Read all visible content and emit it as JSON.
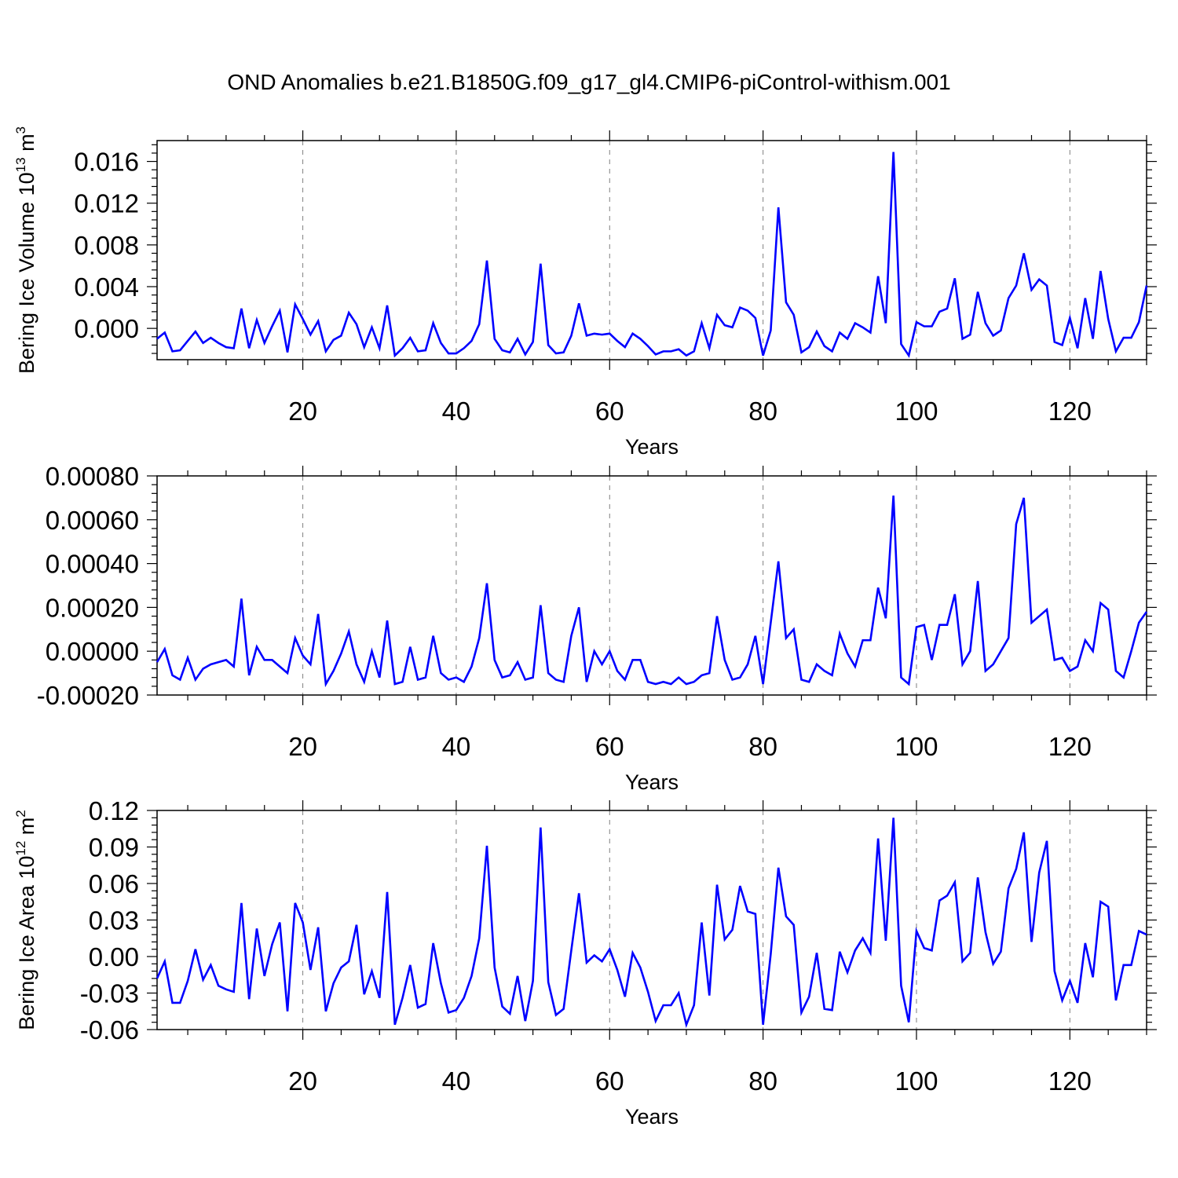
{
  "title": "OND Anomalies b.e21.B1850G.f09_g17_gl4.CMIP6-piControl-withism.001",
  "colors": {
    "line": "#0000ff",
    "axis": "#000000",
    "grid": "#808080"
  },
  "chart_data": [
    {
      "type": "line",
      "title": "",
      "xlabel": "Years",
      "ylabel_parts": [
        "Bering Ice Volume 10",
        "13",
        " m",
        "3"
      ],
      "xlim": [
        1,
        130
      ],
      "ylim": [
        -0.003,
        0.018
      ],
      "xticks": [
        20,
        40,
        60,
        80,
        100,
        120
      ],
      "yticks": [
        0.0,
        0.004,
        0.008,
        0.012,
        0.016
      ],
      "ytick_labels": [
        "0.000",
        "0.004",
        "0.008",
        "0.012",
        "0.016"
      ],
      "x_grid": true,
      "series": [
        {
          "x": [
            1,
            2,
            3,
            4,
            5,
            6,
            7,
            8,
            9,
            10,
            11,
            12,
            13,
            14,
            15,
            16,
            17,
            18,
            19,
            20,
            21,
            22,
            23,
            24,
            25,
            26,
            27,
            28,
            29,
            30,
            31,
            32,
            33,
            34,
            35,
            36,
            37,
            38,
            39,
            40,
            41,
            42,
            43,
            44,
            45,
            46,
            47,
            48,
            49,
            50,
            51,
            52,
            53,
            54,
            55,
            56,
            57,
            58,
            59,
            60,
            61,
            62,
            63,
            64,
            65,
            66,
            67,
            68,
            69,
            70,
            71,
            72,
            73,
            74,
            75,
            76,
            77,
            78,
            79,
            80,
            81,
            82,
            83,
            84,
            85,
            86,
            87,
            88,
            89,
            90,
            91,
            92,
            93,
            94,
            95,
            96,
            97,
            98,
            99,
            100,
            101,
            102,
            103,
            104,
            105,
            106,
            107,
            108,
            109,
            110,
            111,
            112,
            113,
            114,
            115,
            116,
            117,
            118,
            119,
            120,
            121,
            122,
            123,
            124,
            125,
            126,
            127,
            128,
            129,
            130
          ],
          "y": [
            -0.001,
            -0.0004,
            -0.0022,
            -0.0021,
            -0.0012,
            -0.0003,
            -0.0014,
            -0.0009,
            -0.0014,
            -0.0018,
            -0.0019,
            0.0019,
            -0.0019,
            0.0008,
            -0.0014,
            0.0002,
            0.0017,
            -0.0023,
            0.0023,
            0.0009,
            -0.0006,
            0.0007,
            -0.0022,
            -0.0011,
            -0.0007,
            0.0015,
            0.0004,
            -0.0018,
            0.0001,
            -0.0019,
            0.0022,
            -0.0026,
            -0.0019,
            -0.0009,
            -0.0022,
            -0.0021,
            0.0005,
            -0.0014,
            -0.0024,
            -0.0024,
            -0.0019,
            -0.0012,
            0.0004,
            0.0065,
            -0.001,
            -0.0021,
            -0.0023,
            -0.001,
            -0.0025,
            -0.0013,
            0.0062,
            -0.0016,
            -0.0024,
            -0.0023,
            -0.0007,
            0.0024,
            -0.0007,
            -0.0005,
            -0.0006,
            -0.0005,
            -0.0012,
            -0.0018,
            -0.0005,
            -0.001,
            -0.0017,
            -0.0025,
            -0.0022,
            -0.0022,
            -0.002,
            -0.0026,
            -0.0022,
            0.0005,
            -0.0019,
            0.0013,
            0.0003,
            0.0001,
            0.002,
            0.0017,
            0.001,
            -0.0026,
            -0.0002,
            0.0116,
            0.0025,
            0.0013,
            -0.0023,
            -0.0018,
            -0.0003,
            -0.0017,
            -0.0022,
            -0.0004,
            -0.001,
            0.0005,
            0.0001,
            -0.0004,
            0.005,
            0.0005,
            0.0169,
            -0.0015,
            -0.0026,
            0.0006,
            0.0002,
            0.0002,
            0.0016,
            0.0019,
            0.0048,
            -0.001,
            -0.0006,
            0.0035,
            0.0005,
            -0.0007,
            -0.0002,
            0.0029,
            0.0041,
            0.0072,
            0.0037,
            0.0047,
            0.0041,
            -0.0013,
            -0.0016,
            0.001,
            -0.0019,
            0.0029,
            -0.001,
            0.0055,
            0.0009,
            -0.0022,
            -0.0009,
            -0.0009,
            0.0006,
            0.0041
          ]
        }
      ]
    },
    {
      "type": "line",
      "title": "",
      "xlabel": "Years",
      "ylabel_parts": [],
      "xlim": [
        1,
        130
      ],
      "ylim": [
        -0.0002,
        0.0008
      ],
      "xticks": [
        20,
        40,
        60,
        80,
        100,
        120
      ],
      "yticks": [
        -0.0002,
        0.0,
        0.0002,
        0.0004,
        0.0006,
        0.0008
      ],
      "ytick_labels": [
        "-0.00020",
        "0.00000",
        "0.00020",
        "0.00040",
        "0.00060",
        "0.00080"
      ],
      "x_grid": true,
      "series": [
        {
          "x": [
            1,
            2,
            3,
            4,
            5,
            6,
            7,
            8,
            9,
            10,
            11,
            12,
            13,
            14,
            15,
            16,
            17,
            18,
            19,
            20,
            21,
            22,
            23,
            24,
            25,
            26,
            27,
            28,
            29,
            30,
            31,
            32,
            33,
            34,
            35,
            36,
            37,
            38,
            39,
            40,
            41,
            42,
            43,
            44,
            45,
            46,
            47,
            48,
            49,
            50,
            51,
            52,
            53,
            54,
            55,
            56,
            57,
            58,
            59,
            60,
            61,
            62,
            63,
            64,
            65,
            66,
            67,
            68,
            69,
            70,
            71,
            72,
            73,
            74,
            75,
            76,
            77,
            78,
            79,
            80,
            81,
            82,
            83,
            84,
            85,
            86,
            87,
            88,
            89,
            90,
            91,
            92,
            93,
            94,
            95,
            96,
            97,
            98,
            99,
            100,
            101,
            102,
            103,
            104,
            105,
            106,
            107,
            108,
            109,
            110,
            111,
            112,
            113,
            114,
            115,
            116,
            117,
            118,
            119,
            120,
            121,
            122,
            123,
            124,
            125,
            126,
            127,
            128,
            129,
            130
          ],
          "y": [
            -5e-05,
            1e-05,
            -0.00011,
            -0.00013,
            -3e-05,
            -0.00013,
            -8e-05,
            -6e-05,
            -5e-05,
            -4e-05,
            -7e-05,
            0.00024,
            -0.00011,
            2e-05,
            -4e-05,
            -4e-05,
            -7e-05,
            -0.0001,
            6e-05,
            -2e-05,
            -6e-05,
            0.00017,
            -0.00015,
            -9e-05,
            -1e-05,
            9e-05,
            -6e-05,
            -0.00014,
            0.0,
            -0.00012,
            0.00014,
            -0.00015,
            -0.00014,
            2e-05,
            -0.00013,
            -0.00012,
            7e-05,
            -0.0001,
            -0.00013,
            -0.00012,
            -0.00014,
            -7e-05,
            6e-05,
            0.00031,
            -4e-05,
            -0.00012,
            -0.00011,
            -5e-05,
            -0.00013,
            -0.00012,
            0.00021,
            -0.0001,
            -0.00013,
            -0.00014,
            7e-05,
            0.0002,
            -0.00014,
            0.0,
            -6e-05,
            0.0,
            -9e-05,
            -0.00013,
            -4e-05,
            -4e-05,
            -0.00014,
            -0.00015,
            -0.00014,
            -0.00015,
            -0.00012,
            -0.00015,
            -0.00014,
            -0.00011,
            -0.0001,
            0.00016,
            -4e-05,
            -0.00013,
            -0.00012,
            -6e-05,
            7e-05,
            -0.00015,
            0.00013,
            0.00041,
            6e-05,
            0.0001,
            -0.00013,
            -0.00014,
            -6e-05,
            -9e-05,
            -0.00011,
            8e-05,
            -1e-05,
            -7e-05,
            5e-05,
            5e-05,
            0.00029,
            0.00015,
            0.00071,
            -0.00012,
            -0.00015,
            0.00011,
            0.00012,
            -4e-05,
            0.00012,
            0.00012,
            0.00026,
            -6e-05,
            0.0,
            0.00032,
            -9e-05,
            -6e-05,
            0.0,
            6e-05,
            0.00058,
            0.0007,
            0.00013,
            0.00016,
            0.00019,
            -4e-05,
            -3e-05,
            -9e-05,
            -7e-05,
            5e-05,
            0.0,
            0.00022,
            0.00019,
            -9e-05,
            -0.00012,
            0.0,
            0.00013,
            0.00018
          ]
        }
      ]
    },
    {
      "type": "line",
      "title": "",
      "xlabel": "Years",
      "ylabel_parts": [
        "Bering Ice Area 10",
        "12",
        " m",
        "2"
      ],
      "xlim": [
        1,
        130
      ],
      "ylim": [
        -0.06,
        0.12
      ],
      "xticks": [
        20,
        40,
        60,
        80,
        100,
        120
      ],
      "yticks": [
        -0.06,
        -0.03,
        0.0,
        0.03,
        0.06,
        0.09,
        0.12
      ],
      "ytick_labels": [
        "-0.06",
        "-0.03",
        "0.00",
        "0.03",
        "0.06",
        "0.09",
        "0.12"
      ],
      "x_grid": true,
      "series": [
        {
          "x": [
            1,
            2,
            3,
            4,
            5,
            6,
            7,
            8,
            9,
            10,
            11,
            12,
            13,
            14,
            15,
            16,
            17,
            18,
            19,
            20,
            21,
            22,
            23,
            24,
            25,
            26,
            27,
            28,
            29,
            30,
            31,
            32,
            33,
            34,
            35,
            36,
            37,
            38,
            39,
            40,
            41,
            42,
            43,
            44,
            45,
            46,
            47,
            48,
            49,
            50,
            51,
            52,
            53,
            54,
            55,
            56,
            57,
            58,
            59,
            60,
            61,
            62,
            63,
            64,
            65,
            66,
            67,
            68,
            69,
            70,
            71,
            72,
            73,
            74,
            75,
            76,
            77,
            78,
            79,
            80,
            81,
            82,
            83,
            84,
            85,
            86,
            87,
            88,
            89,
            90,
            91,
            92,
            93,
            94,
            95,
            96,
            97,
            98,
            99,
            100,
            101,
            102,
            103,
            104,
            105,
            106,
            107,
            108,
            109,
            110,
            111,
            112,
            113,
            114,
            115,
            116,
            117,
            118,
            119,
            120,
            121,
            122,
            123,
            124,
            125,
            126,
            127,
            128,
            129,
            130
          ],
          "y": [
            -0.018,
            -0.004,
            -0.038,
            -0.038,
            -0.02,
            0.006,
            -0.019,
            -0.007,
            -0.024,
            -0.027,
            -0.029,
            0.044,
            -0.035,
            0.023,
            -0.016,
            0.01,
            0.028,
            -0.045,
            0.044,
            0.028,
            -0.011,
            0.024,
            -0.045,
            -0.022,
            -0.009,
            -0.004,
            0.026,
            -0.031,
            -0.012,
            -0.034,
            0.053,
            -0.056,
            -0.034,
            -0.007,
            -0.042,
            -0.039,
            0.011,
            -0.022,
            -0.046,
            -0.044,
            -0.034,
            -0.016,
            0.015,
            0.091,
            -0.009,
            -0.041,
            -0.047,
            -0.016,
            -0.053,
            -0.02,
            0.106,
            -0.021,
            -0.048,
            -0.043,
            0.005,
            0.052,
            -0.005,
            0.001,
            -0.004,
            0.006,
            -0.011,
            -0.033,
            0.003,
            -0.009,
            -0.029,
            -0.053,
            -0.04,
            -0.04,
            -0.03,
            -0.056,
            -0.04,
            0.028,
            -0.032,
            0.059,
            0.014,
            0.022,
            0.058,
            0.037,
            0.035,
            -0.056,
            0.002,
            0.073,
            0.033,
            0.026,
            -0.046,
            -0.033,
            0.003,
            -0.043,
            -0.044,
            0.004,
            -0.013,
            0.005,
            0.015,
            0.003,
            0.097,
            0.013,
            0.114,
            -0.024,
            -0.054,
            0.021,
            0.007,
            0.005,
            0.046,
            0.05,
            0.061,
            -0.004,
            0.003,
            0.065,
            0.02,
            -0.006,
            0.004,
            0.056,
            0.072,
            0.102,
            0.012,
            0.069,
            0.095,
            -0.012,
            -0.036,
            -0.02,
            -0.038,
            0.011,
            -0.017,
            0.045,
            0.041,
            -0.036,
            -0.007,
            -0.007,
            0.021,
            0.018
          ]
        }
      ]
    }
  ]
}
